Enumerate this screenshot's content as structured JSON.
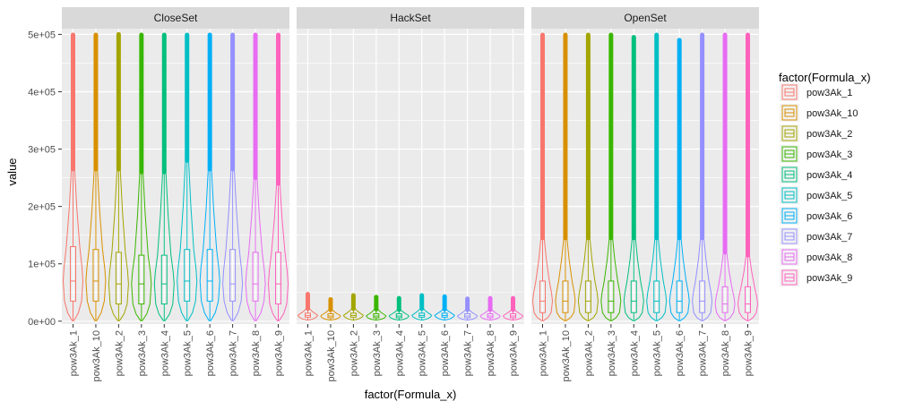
{
  "chart_data": {
    "type": "violin",
    "xlabel": "factor(Formula_x)",
    "ylabel": "value",
    "ylim": [
      -5000,
      510000
    ],
    "y_ticks": [
      0,
      100000,
      200000,
      300000,
      400000,
      500000
    ],
    "y_tick_labels": [
      "0e+00",
      "1e+05",
      "2e+05",
      "3e+05",
      "4e+05",
      "5e+05"
    ],
    "categories": [
      "pow3Ak_1",
      "pow3Ak_10",
      "pow3Ak_2",
      "pow3Ak_3",
      "pow3Ak_4",
      "pow3Ak_5",
      "pow3Ak_6",
      "pow3Ak_7",
      "pow3Ak_8",
      "pow3Ak_9"
    ],
    "colors": [
      "#F8766D",
      "#D89000",
      "#A3A500",
      "#39B600",
      "#00BF7D",
      "#00BFC4",
      "#00B0F6",
      "#9590FF",
      "#E76BF3",
      "#FF62BC"
    ],
    "legend": {
      "title": "factor(Formula_x)",
      "position": "right",
      "entries": [
        "pow3Ak_1",
        "pow3Ak_10",
        "pow3Ak_2",
        "pow3Ak_3",
        "pow3Ak_4",
        "pow3Ak_5",
        "pow3Ak_6",
        "pow3Ak_7",
        "pow3Ak_8",
        "pow3Ak_9"
      ]
    },
    "grid": true,
    "panels": [
      {
        "name": "CloseSet",
        "max": [
          499000,
          499000,
          500000,
          499000,
          499000,
          499000,
          499000,
          499000,
          499000,
          499000
        ],
        "whisker_top": [
          265000,
          265000,
          265000,
          260000,
          260000,
          280000,
          265000,
          265000,
          250000,
          240000
        ],
        "q3": [
          130000,
          125000,
          120000,
          115000,
          115000,
          125000,
          125000,
          125000,
          120000,
          120000
        ],
        "median": [
          70000,
          70000,
          65000,
          65000,
          65000,
          70000,
          70000,
          65000,
          65000,
          65000
        ],
        "q1": [
          35000,
          35000,
          30000,
          30000,
          30000,
          35000,
          35000,
          35000,
          35000,
          30000
        ],
        "min": [
          1000,
          1000,
          1000,
          1000,
          1000,
          1000,
          1000,
          1000,
          1000,
          1000
        ]
      },
      {
        "name": "HackSet",
        "max": [
          47000,
          38000,
          45000,
          42000,
          40000,
          45000,
          43000,
          39000,
          40000,
          40000
        ],
        "whisker_top": [
          22000,
          20000,
          22000,
          21000,
          20000,
          22000,
          21000,
          20000,
          20000,
          20000
        ],
        "q3": [
          14000,
          13000,
          14000,
          13000,
          13000,
          14000,
          14000,
          13000,
          13000,
          13000
        ],
        "median": [
          10000,
          9000,
          10000,
          9000,
          9000,
          10000,
          10000,
          9000,
          9000,
          9000
        ],
        "q1": [
          7000,
          6000,
          7000,
          6000,
          6000,
          7000,
          7000,
          6000,
          6000,
          6000
        ],
        "min": [
          2000,
          2000,
          2000,
          2000,
          2000,
          2000,
          2000,
          2000,
          2000,
          2000
        ]
      },
      {
        "name": "OpenSet",
        "max": [
          499000,
          499000,
          499000,
          499000,
          495000,
          499000,
          490000,
          499000,
          499000,
          499000
        ],
        "whisker_top": [
          145000,
          145000,
          145000,
          145000,
          145000,
          145000,
          145000,
          145000,
          120000,
          115000
        ],
        "q3": [
          70000,
          70000,
          70000,
          70000,
          70000,
          70000,
          70000,
          70000,
          60000,
          60000
        ],
        "median": [
          35000,
          35000,
          35000,
          35000,
          35000,
          35000,
          35000,
          35000,
          30000,
          30000
        ],
        "q1": [
          15000,
          15000,
          15000,
          15000,
          15000,
          15000,
          15000,
          15000,
          15000,
          15000
        ],
        "min": [
          1000,
          1000,
          1000,
          1000,
          1000,
          1000,
          1000,
          1000,
          1000,
          1000
        ]
      }
    ]
  }
}
